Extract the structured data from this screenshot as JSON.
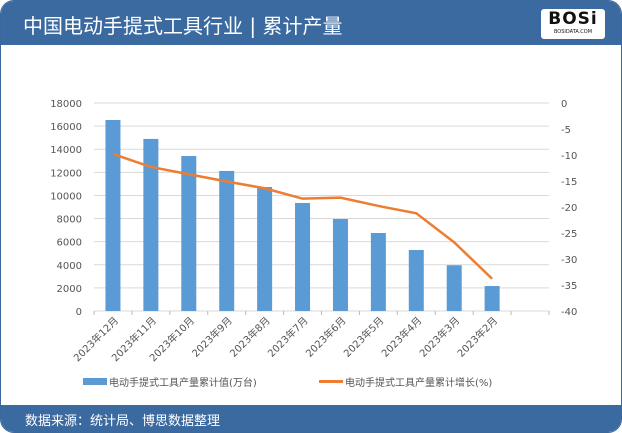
{
  "header": {
    "title": "中国电动手提式工具行业 | 累计产量",
    "logo_text": "BOSi",
    "logo_sub": "BOSIDATA.COM"
  },
  "footer": {
    "source": "数据来源：统计局、博思数据整理"
  },
  "colors": {
    "header": "#3b6aa0",
    "bar": "#5b9bd5",
    "line": "#ed7d31"
  },
  "chart_data": {
    "type": "bar+line",
    "categories": [
      "2023年12月",
      "2023年11月",
      "2023年10月",
      "2023年9月",
      "2023年8月",
      "2023年7月",
      "2023年6月",
      "2023年5月",
      "2023年4月",
      "2023年3月",
      "2023年2月"
    ],
    "series": [
      {
        "name": "电动手提式工具产量累计值(万台)",
        "type": "bar",
        "axis": "left",
        "values": [
          16530,
          14890,
          13410,
          12120,
          10730,
          9350,
          7960,
          6750,
          5280,
          3960,
          2160
        ]
      },
      {
        "name": "电动手提式工具产量累计增长(%)",
        "type": "line",
        "axis": "right",
        "values": [
          -9.8,
          -12.3,
          -13.7,
          -15.1,
          -16.4,
          -18.4,
          -18.2,
          -19.8,
          -21.2,
          -26.8,
          -33.8
        ]
      }
    ],
    "y_left": {
      "range": [
        0,
        18000
      ],
      "ticks": [
        0,
        2000,
        4000,
        6000,
        8000,
        10000,
        12000,
        14000,
        16000,
        18000
      ]
    },
    "y_right": {
      "range": [
        -40,
        0
      ],
      "ticks": [
        0,
        -5,
        -10,
        -15,
        -20,
        -25,
        -30,
        -35,
        -40
      ]
    },
    "grid": true,
    "legend": "bottom"
  }
}
